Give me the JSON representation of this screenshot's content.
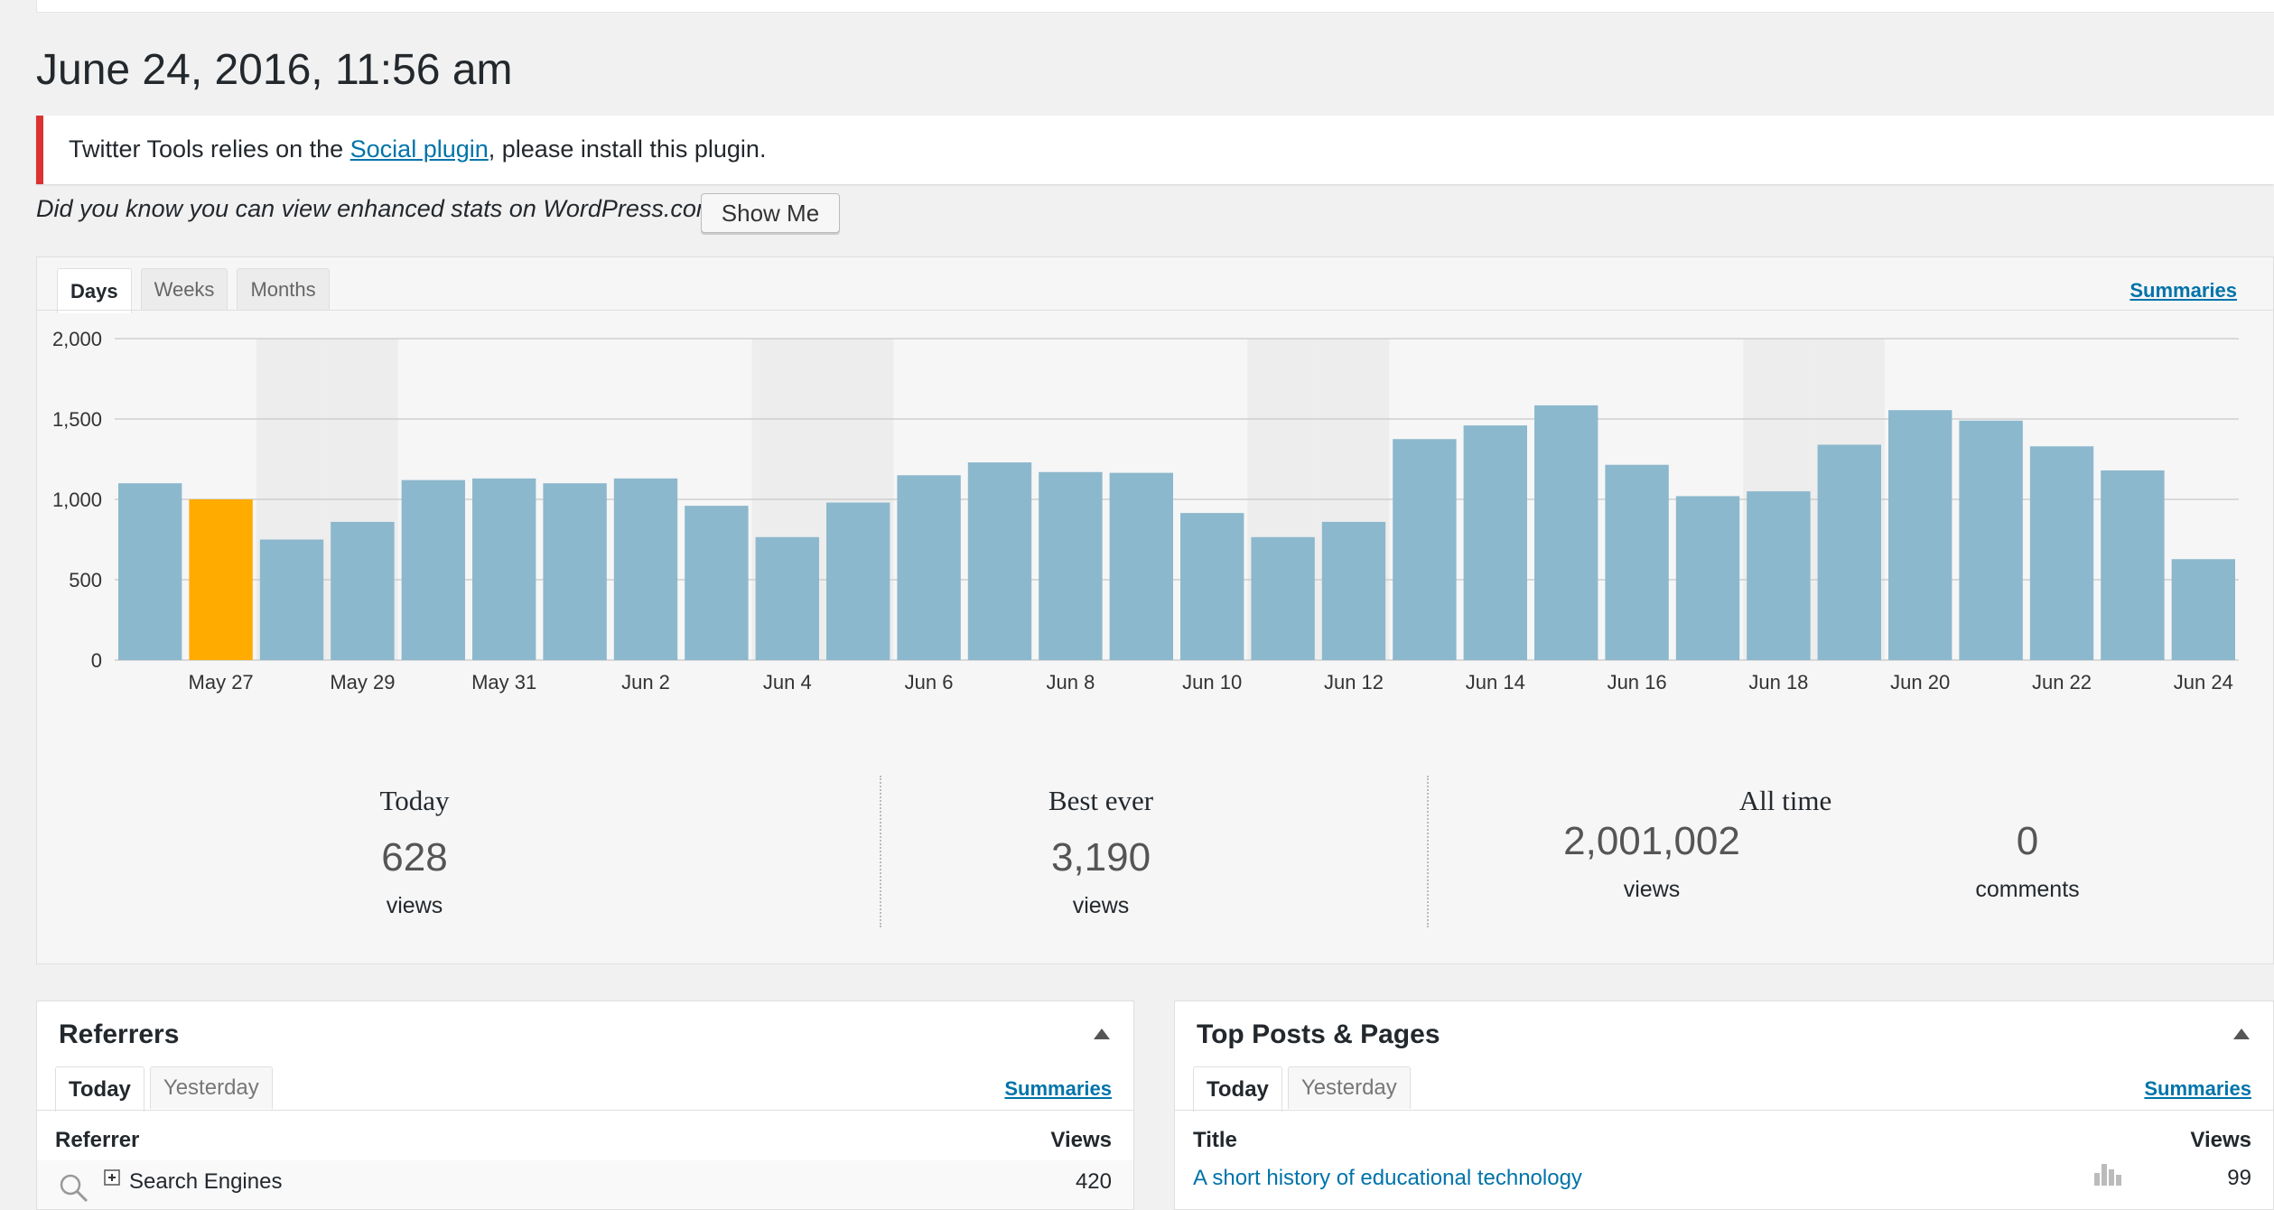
{
  "page_title": "June 24, 2016, 11:56 am",
  "notice": {
    "prefix": "Twitter Tools relies on the ",
    "link": "Social plugin",
    "suffix": ", please install this plugin."
  },
  "promo": {
    "text": "Did you know you can view enhanced stats on WordPress.com?",
    "button": "Show Me"
  },
  "stats_tabs": [
    "Days",
    "Weeks",
    "Months"
  ],
  "summaries_label": "Summaries",
  "summary": {
    "today": {
      "label": "Today",
      "value": "628",
      "unit": "views"
    },
    "best": {
      "label": "Best ever",
      "value": "3,190",
      "unit": "views"
    },
    "all_time": {
      "label": "All time",
      "views": "2,001,002",
      "views_unit": "views",
      "comments": "0",
      "comments_unit": "comments"
    }
  },
  "referrers": {
    "title": "Referrers",
    "tabs": [
      "Today",
      "Yesterday"
    ],
    "summaries": "Summaries",
    "col_left": "Referrer",
    "col_right": "Views",
    "row": {
      "label": "Search Engines",
      "value": "420"
    }
  },
  "top_posts": {
    "title": "Top Posts & Pages",
    "tabs": [
      "Today",
      "Yesterday"
    ],
    "summaries": "Summaries",
    "col_left": "Title",
    "col_right": "Views",
    "row": {
      "label": "A short history of educational technology",
      "value": "99"
    }
  },
  "colors": {
    "bar": "#8cb8cd",
    "highlight_bar": "#ffab00",
    "weekend_band": "#ededed"
  },
  "chart_data": {
    "type": "bar",
    "categories": [
      "May 26",
      "May 27",
      "May 28",
      "May 29",
      "May 30",
      "May 31",
      "Jun 1",
      "Jun 2",
      "Jun 3",
      "Jun 4",
      "Jun 5",
      "Jun 6",
      "Jun 7",
      "Jun 8",
      "Jun 9",
      "Jun 10",
      "Jun 11",
      "Jun 12",
      "Jun 13",
      "Jun 14",
      "Jun 15",
      "Jun 16",
      "Jun 17",
      "Jun 18",
      "Jun 19",
      "Jun 20",
      "Jun 21",
      "Jun 22",
      "Jun 23",
      "Jun 24"
    ],
    "x_tick_labels": [
      "May 27",
      "May 29",
      "May 31",
      "Jun 2",
      "Jun 4",
      "Jun 6",
      "Jun 8",
      "Jun 10",
      "Jun 12",
      "Jun 14",
      "Jun 16",
      "Jun 18",
      "Jun 20",
      "Jun 22",
      "Jun 24"
    ],
    "values": [
      1100,
      1000,
      750,
      860,
      1120,
      1130,
      1100,
      1130,
      960,
      765,
      980,
      1150,
      1230,
      1170,
      1165,
      915,
      765,
      860,
      1375,
      1460,
      1585,
      1215,
      1020,
      1050,
      1340,
      1555,
      1490,
      1330,
      1180,
      628
    ],
    "highlight_index": 1,
    "weekend_indices": [
      2,
      3,
      9,
      10,
      16,
      17,
      23,
      24
    ],
    "ylim": [
      0,
      2000
    ],
    "y_ticks": [
      "0",
      "500",
      "1,000",
      "1,500",
      "2,000"
    ],
    "y_tick_values": [
      0,
      500,
      1000,
      1500,
      2000
    ],
    "grid": true
  }
}
